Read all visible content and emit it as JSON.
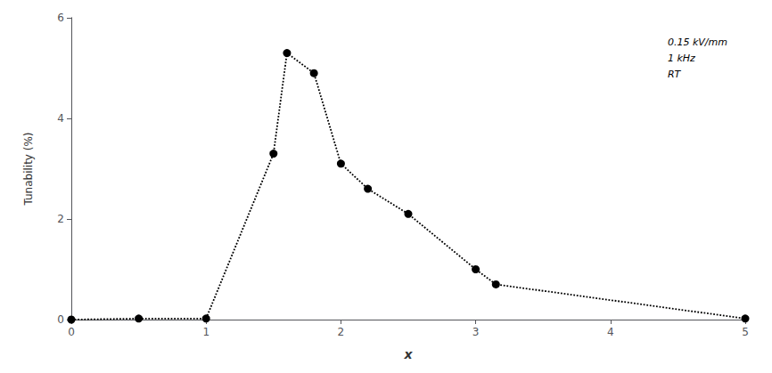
{
  "chart_data": {
    "type": "line",
    "x": [
      0,
      0.5,
      1.0,
      1.5,
      1.6,
      1.8,
      2.0,
      2.2,
      2.5,
      3.0,
      3.15,
      5.0
    ],
    "values": [
      0,
      0.02,
      0.02,
      3.3,
      5.3,
      4.9,
      3.1,
      2.6,
      2.1,
      1.0,
      0.7,
      0.02
    ],
    "xlabel": "x",
    "ylabel": "Tunability (%)",
    "xlim": [
      0,
      5
    ],
    "ylim": [
      0,
      6
    ],
    "xticks": [
      0,
      1,
      2,
      3,
      4,
      5
    ],
    "yticks": [
      0,
      2,
      4,
      6
    ],
    "annotations": [
      "0.15 kV/mm",
      "1 kHz",
      "RT"
    ],
    "color": "black",
    "marker": "circle",
    "line_style": "dotted",
    "grid": false
  }
}
